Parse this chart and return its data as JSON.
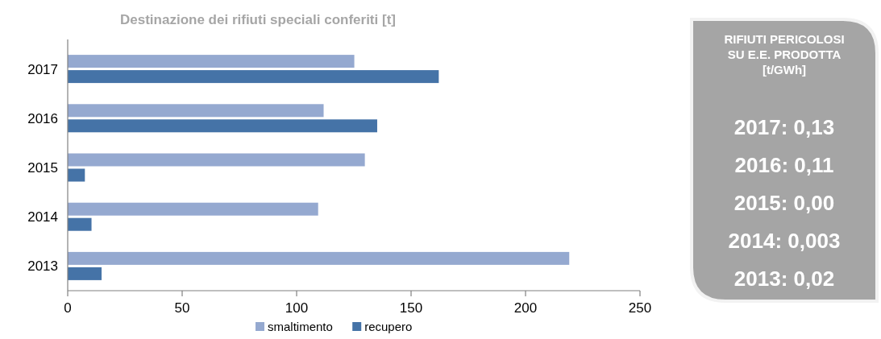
{
  "chart_data": [
    {
      "type": "bar",
      "orientation": "horizontal",
      "title": "Destinazione dei rifiuti speciali conferiti [t]",
      "categories": [
        "2017",
        "2016",
        "2015",
        "2014",
        "2013"
      ],
      "series": [
        {
          "name": "smaltimento",
          "color": "#95a9d0",
          "values": [
            125.2,
            111.8,
            129.8,
            109.4,
            219.1
          ]
        },
        {
          "name": "recupero",
          "color": "#4573a7",
          "values": [
            162.1,
            135.2,
            7.5,
            10.4,
            14.8
          ]
        }
      ],
      "xlim": [
        0,
        250
      ],
      "xticks": [
        0,
        50,
        100,
        150,
        200,
        250
      ],
      "legend": "bottom",
      "grid": false
    },
    {
      "type": "other",
      "title": "RIFIUTI PERICOLOSI\nSU E.E. PRODOTTA\n[t/GWh]",
      "annotations": [
        "2017: 0,13",
        "2016: 0,11",
        "2015: 0,00",
        "2014: 0,003",
        "2013: 0,02"
      ]
    }
  ]
}
